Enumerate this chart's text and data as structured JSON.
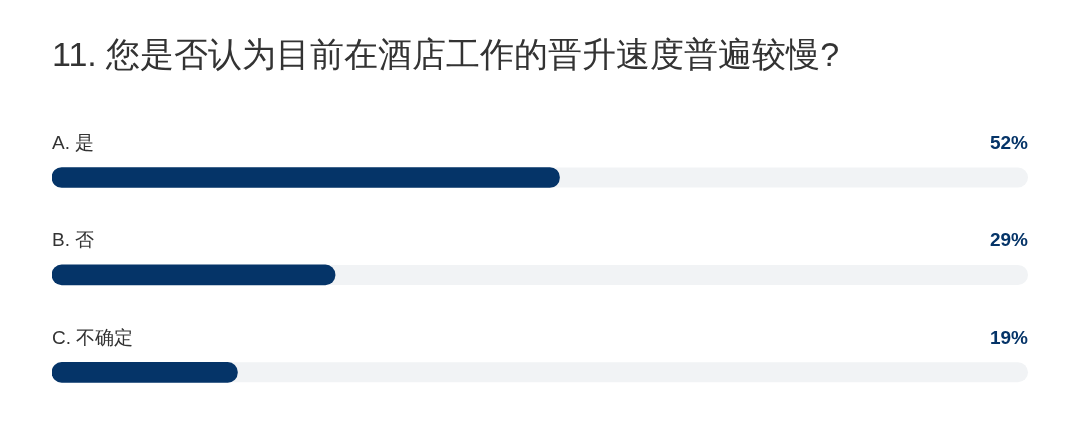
{
  "chart_data": {
    "type": "bar",
    "orientation": "horizontal",
    "title": "11. 您是否认为目前在酒店工作的晋升速度普遍较慢?",
    "categories": [
      "A. 是",
      "B. 否",
      "C. 不确定"
    ],
    "values": [
      52,
      29,
      19
    ],
    "value_labels": [
      "52%",
      "29%",
      "19%"
    ],
    "color": "#053468",
    "xlim": [
      0,
      100
    ]
  }
}
